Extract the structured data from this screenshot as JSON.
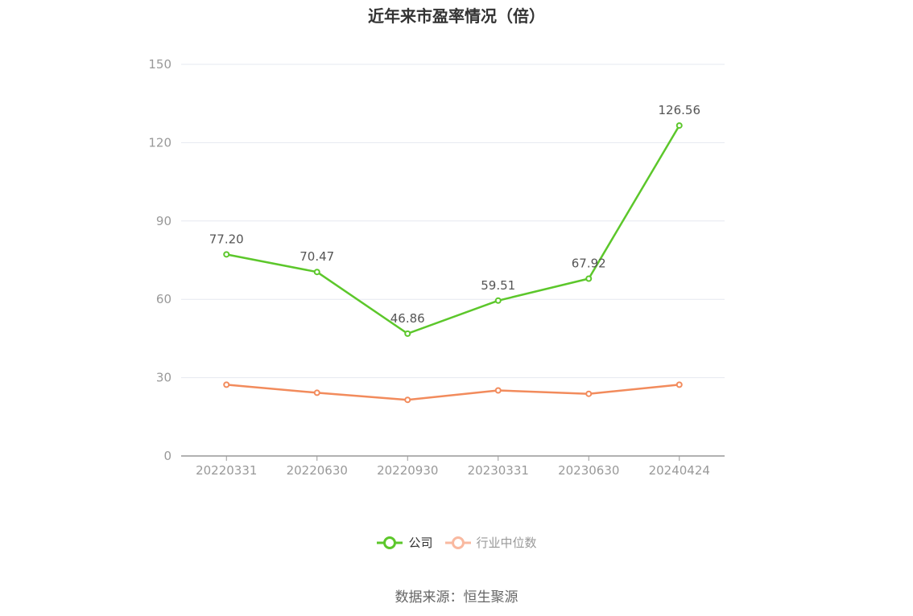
{
  "title": "近年来市盈率情况（倍）",
  "source": "数据来源：恒生聚源",
  "colors": {
    "company": "#5cc72b",
    "industry": "#f28b5c",
    "industry_legend": "#f9b9a0",
    "grid": "#e6e8f0",
    "axis": "#999999",
    "tick_label": "#999999",
    "data_label": "#555555"
  },
  "chart_data": {
    "type": "line",
    "title": "近年来市盈率情况（倍）",
    "categories": [
      "20220331",
      "20220630",
      "20220930",
      "20230331",
      "20230630",
      "20240424"
    ],
    "ylim": [
      0,
      150
    ],
    "yticks": [
      0,
      30,
      60,
      90,
      120,
      150
    ],
    "grid": true,
    "legend_position": "bottom",
    "series": [
      {
        "name": "公司",
        "values": [
          77.2,
          70.47,
          46.86,
          59.51,
          67.92,
          126.56
        ],
        "labels": [
          "77.20",
          "70.47",
          "46.86",
          "59.51",
          "67.92",
          "126.56"
        ]
      },
      {
        "name": "行业中位数",
        "values": [
          27.3,
          24.2,
          21.5,
          25.1,
          23.8,
          27.3
        ]
      }
    ]
  }
}
